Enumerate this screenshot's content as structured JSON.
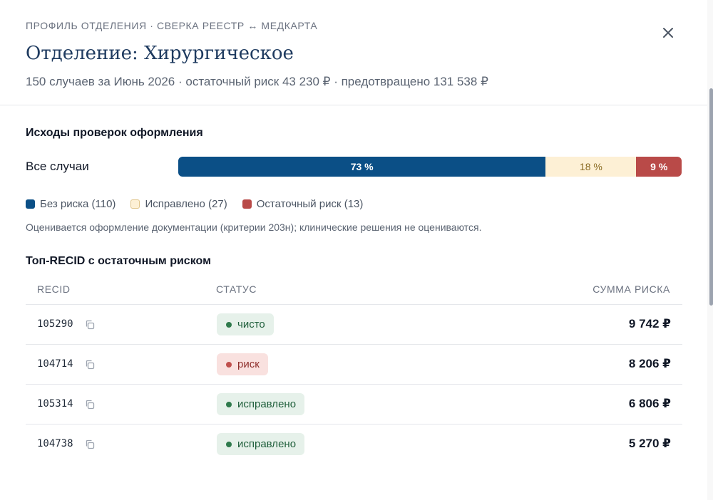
{
  "header": {
    "kicker": "ПРОФИЛЬ ОТДЕЛЕНИЯ · СВЕРКА РЕЕСТР ↔ МЕДКАРТА",
    "title": "Отделение: Хирургическое",
    "subtitle": "150 случаев за Июнь 2026 · остаточный риск 43 230 ₽ · предотвращено 131 538 ₽",
    "close_icon": "close-icon"
  },
  "outcomes": {
    "title": "Исходы проверок оформления",
    "row_label": "Все случаи",
    "segments": [
      {
        "key": "clean",
        "label": "73 %",
        "value": 73,
        "color": "#0b4f86"
      },
      {
        "key": "fixed",
        "label": "18 %",
        "value": 18,
        "color": "#fdf0d5"
      },
      {
        "key": "risk",
        "label": "9 %",
        "value": 9,
        "color": "#b94a48"
      }
    ],
    "legend": [
      {
        "key": "clean",
        "label": "Без риска (110)"
      },
      {
        "key": "fixed",
        "label": "Исправлено (27)"
      },
      {
        "key": "risk",
        "label": "Остаточный риск (13)"
      }
    ],
    "note": "Оценивается оформление документации (критерии 203н); клинические решения не оцениваются."
  },
  "top": {
    "title": "Топ-RECID с остаточным риском",
    "columns": {
      "recid": "RECID",
      "status": "СТАТУС",
      "sum": "СУММА РИСКА"
    },
    "rows": [
      {
        "recid": "105290",
        "status": "чисто",
        "status_type": "ok",
        "amount": "9 742 ₽"
      },
      {
        "recid": "104714",
        "status": "риск",
        "status_type": "risk",
        "amount": "8 206 ₽"
      },
      {
        "recid": "105314",
        "status": "исправлено",
        "status_type": "ok",
        "amount": "6 806 ₽"
      },
      {
        "recid": "104738",
        "status": "исправлено",
        "status_type": "ok",
        "amount": "5 270 ₽"
      }
    ],
    "copy_icon": "copy-icon"
  }
}
